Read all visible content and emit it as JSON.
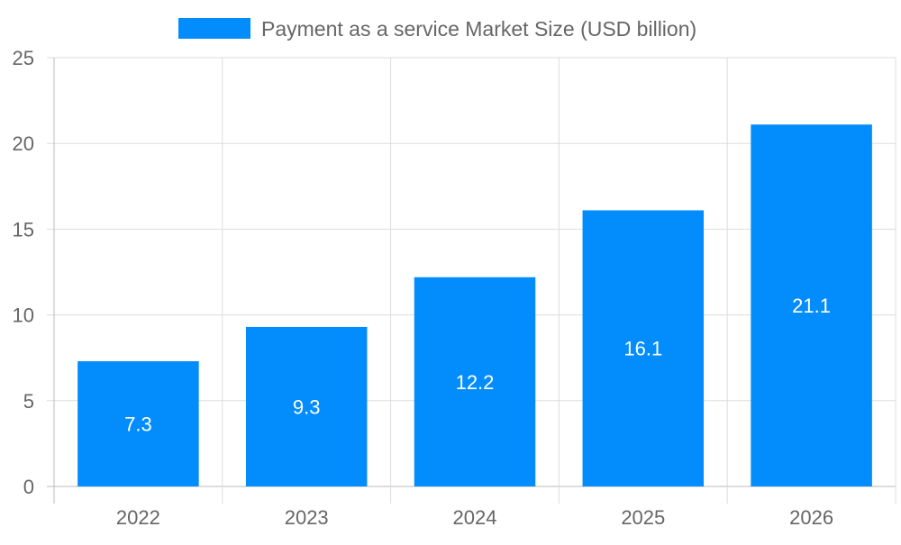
{
  "chart_data": {
    "type": "bar",
    "categories": [
      "2022",
      "2023",
      "2024",
      "2025",
      "2026"
    ],
    "series": [
      {
        "name": "Payment as a service Market Size (USD billion)",
        "values": [
          7.3,
          9.3,
          12.2,
          16.1,
          21.1
        ],
        "color": "#038cfc"
      }
    ],
    "data_labels": [
      "7.3",
      "9.3",
      "12.2",
      "16.1",
      "21.1"
    ],
    "title": "",
    "xlabel": "",
    "ylabel": "",
    "ylim": [
      0,
      25
    ],
    "yticks": [
      "0",
      "5",
      "10",
      "15",
      "20",
      "25"
    ],
    "grid": true,
    "legend": "top-center"
  }
}
